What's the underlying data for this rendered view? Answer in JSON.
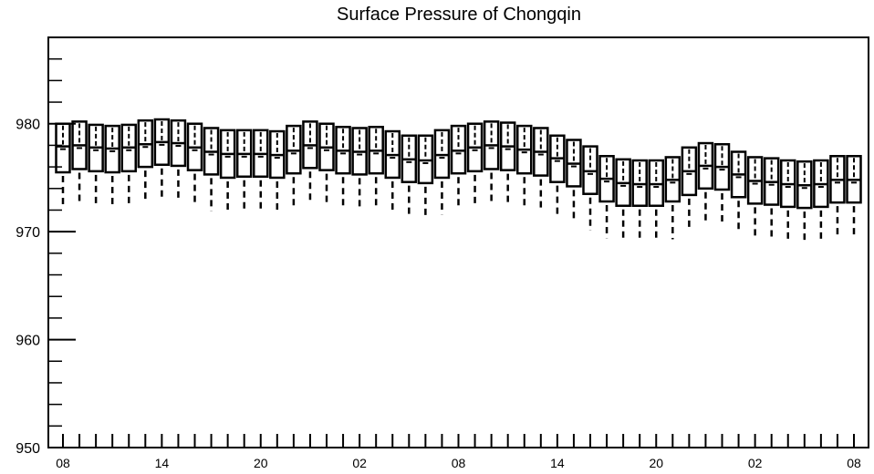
{
  "chart_data": {
    "type": "boxplot",
    "title": "Surface Pressure of Chongqin",
    "xlabel": "",
    "ylabel": "",
    "ylim": [
      950,
      988
    ],
    "yticks": [
      950,
      960,
      970,
      980
    ],
    "xtick_labels": [
      "08",
      "14",
      "20",
      "02",
      "08",
      "14",
      "20",
      "02",
      "08"
    ],
    "grid": false,
    "legend": "none",
    "colors": {
      "axis": "#000000",
      "box": "#000000",
      "background": "#ffffff"
    },
    "series": [
      {
        "x": [
          0,
          1,
          2,
          3,
          4,
          5,
          6,
          7,
          8,
          9,
          10,
          11,
          12,
          13,
          14,
          15,
          16,
          17,
          18,
          19,
          20,
          21,
          22,
          23,
          24,
          25,
          26,
          27,
          28,
          29,
          30,
          31,
          32,
          33,
          34,
          35,
          36,
          37,
          38,
          39,
          40,
          41,
          42,
          43,
          44,
          45,
          46,
          47,
          48
        ],
        "q3": [
          980.0,
          980.2,
          979.9,
          979.8,
          979.9,
          980.3,
          980.4,
          980.3,
          980.0,
          979.6,
          979.4,
          979.4,
          979.4,
          979.3,
          979.8,
          980.2,
          980.0,
          979.7,
          979.6,
          979.7,
          979.3,
          978.9,
          978.9,
          979.4,
          979.8,
          980.0,
          980.2,
          980.1,
          979.8,
          979.6,
          978.9,
          978.5,
          977.9,
          977.0,
          976.7,
          976.6,
          976.6,
          976.9,
          977.8,
          978.2,
          978.1,
          977.4,
          976.9,
          976.8,
          976.6,
          976.5,
          976.6,
          977.0,
          977.0
        ],
        "median": [
          977.9,
          978.0,
          977.8,
          977.7,
          977.8,
          978.1,
          978.3,
          978.2,
          977.8,
          977.4,
          977.2,
          977.2,
          977.2,
          977.1,
          977.5,
          978.0,
          977.8,
          977.5,
          977.4,
          977.5,
          977.1,
          976.7,
          976.6,
          977.1,
          977.5,
          977.8,
          978.0,
          977.9,
          977.6,
          977.4,
          976.8,
          976.3,
          975.6,
          974.9,
          974.5,
          974.4,
          974.4,
          974.8,
          975.6,
          976.1,
          976.0,
          975.3,
          974.7,
          974.6,
          974.4,
          974.3,
          974.4,
          974.8,
          974.8
        ],
        "q1": [
          975.5,
          975.8,
          975.6,
          975.5,
          975.6,
          976.0,
          976.2,
          976.1,
          975.7,
          975.3,
          975.0,
          975.1,
          975.1,
          975.0,
          975.4,
          975.9,
          975.7,
          975.4,
          975.3,
          975.4,
          975.0,
          974.6,
          974.5,
          975.0,
          975.4,
          975.6,
          975.8,
          975.7,
          975.4,
          975.2,
          974.6,
          974.2,
          973.5,
          972.8,
          972.4,
          972.4,
          972.4,
          972.8,
          973.4,
          974.0,
          973.9,
          973.2,
          972.6,
          972.5,
          972.3,
          972.2,
          972.3,
          972.7,
          972.7
        ],
        "whisker_low": [
          972.2,
          972.6,
          972.4,
          972.3,
          972.4,
          972.8,
          972.9,
          972.8,
          972.4,
          971.9,
          971.7,
          971.8,
          971.8,
          971.7,
          972.1,
          972.6,
          972.4,
          972.1,
          972.0,
          972.1,
          971.7,
          971.3,
          971.2,
          971.6,
          972.1,
          972.4,
          972.6,
          972.5,
          972.2,
          972.0,
          971.5,
          970.9,
          970.1,
          969.4,
          969.1,
          969.1,
          969.1,
          969.3,
          970.2,
          970.8,
          970.7,
          970.0,
          969.3,
          969.2,
          969.0,
          969.0,
          969.1,
          969.4,
          969.4
        ]
      }
    ]
  }
}
